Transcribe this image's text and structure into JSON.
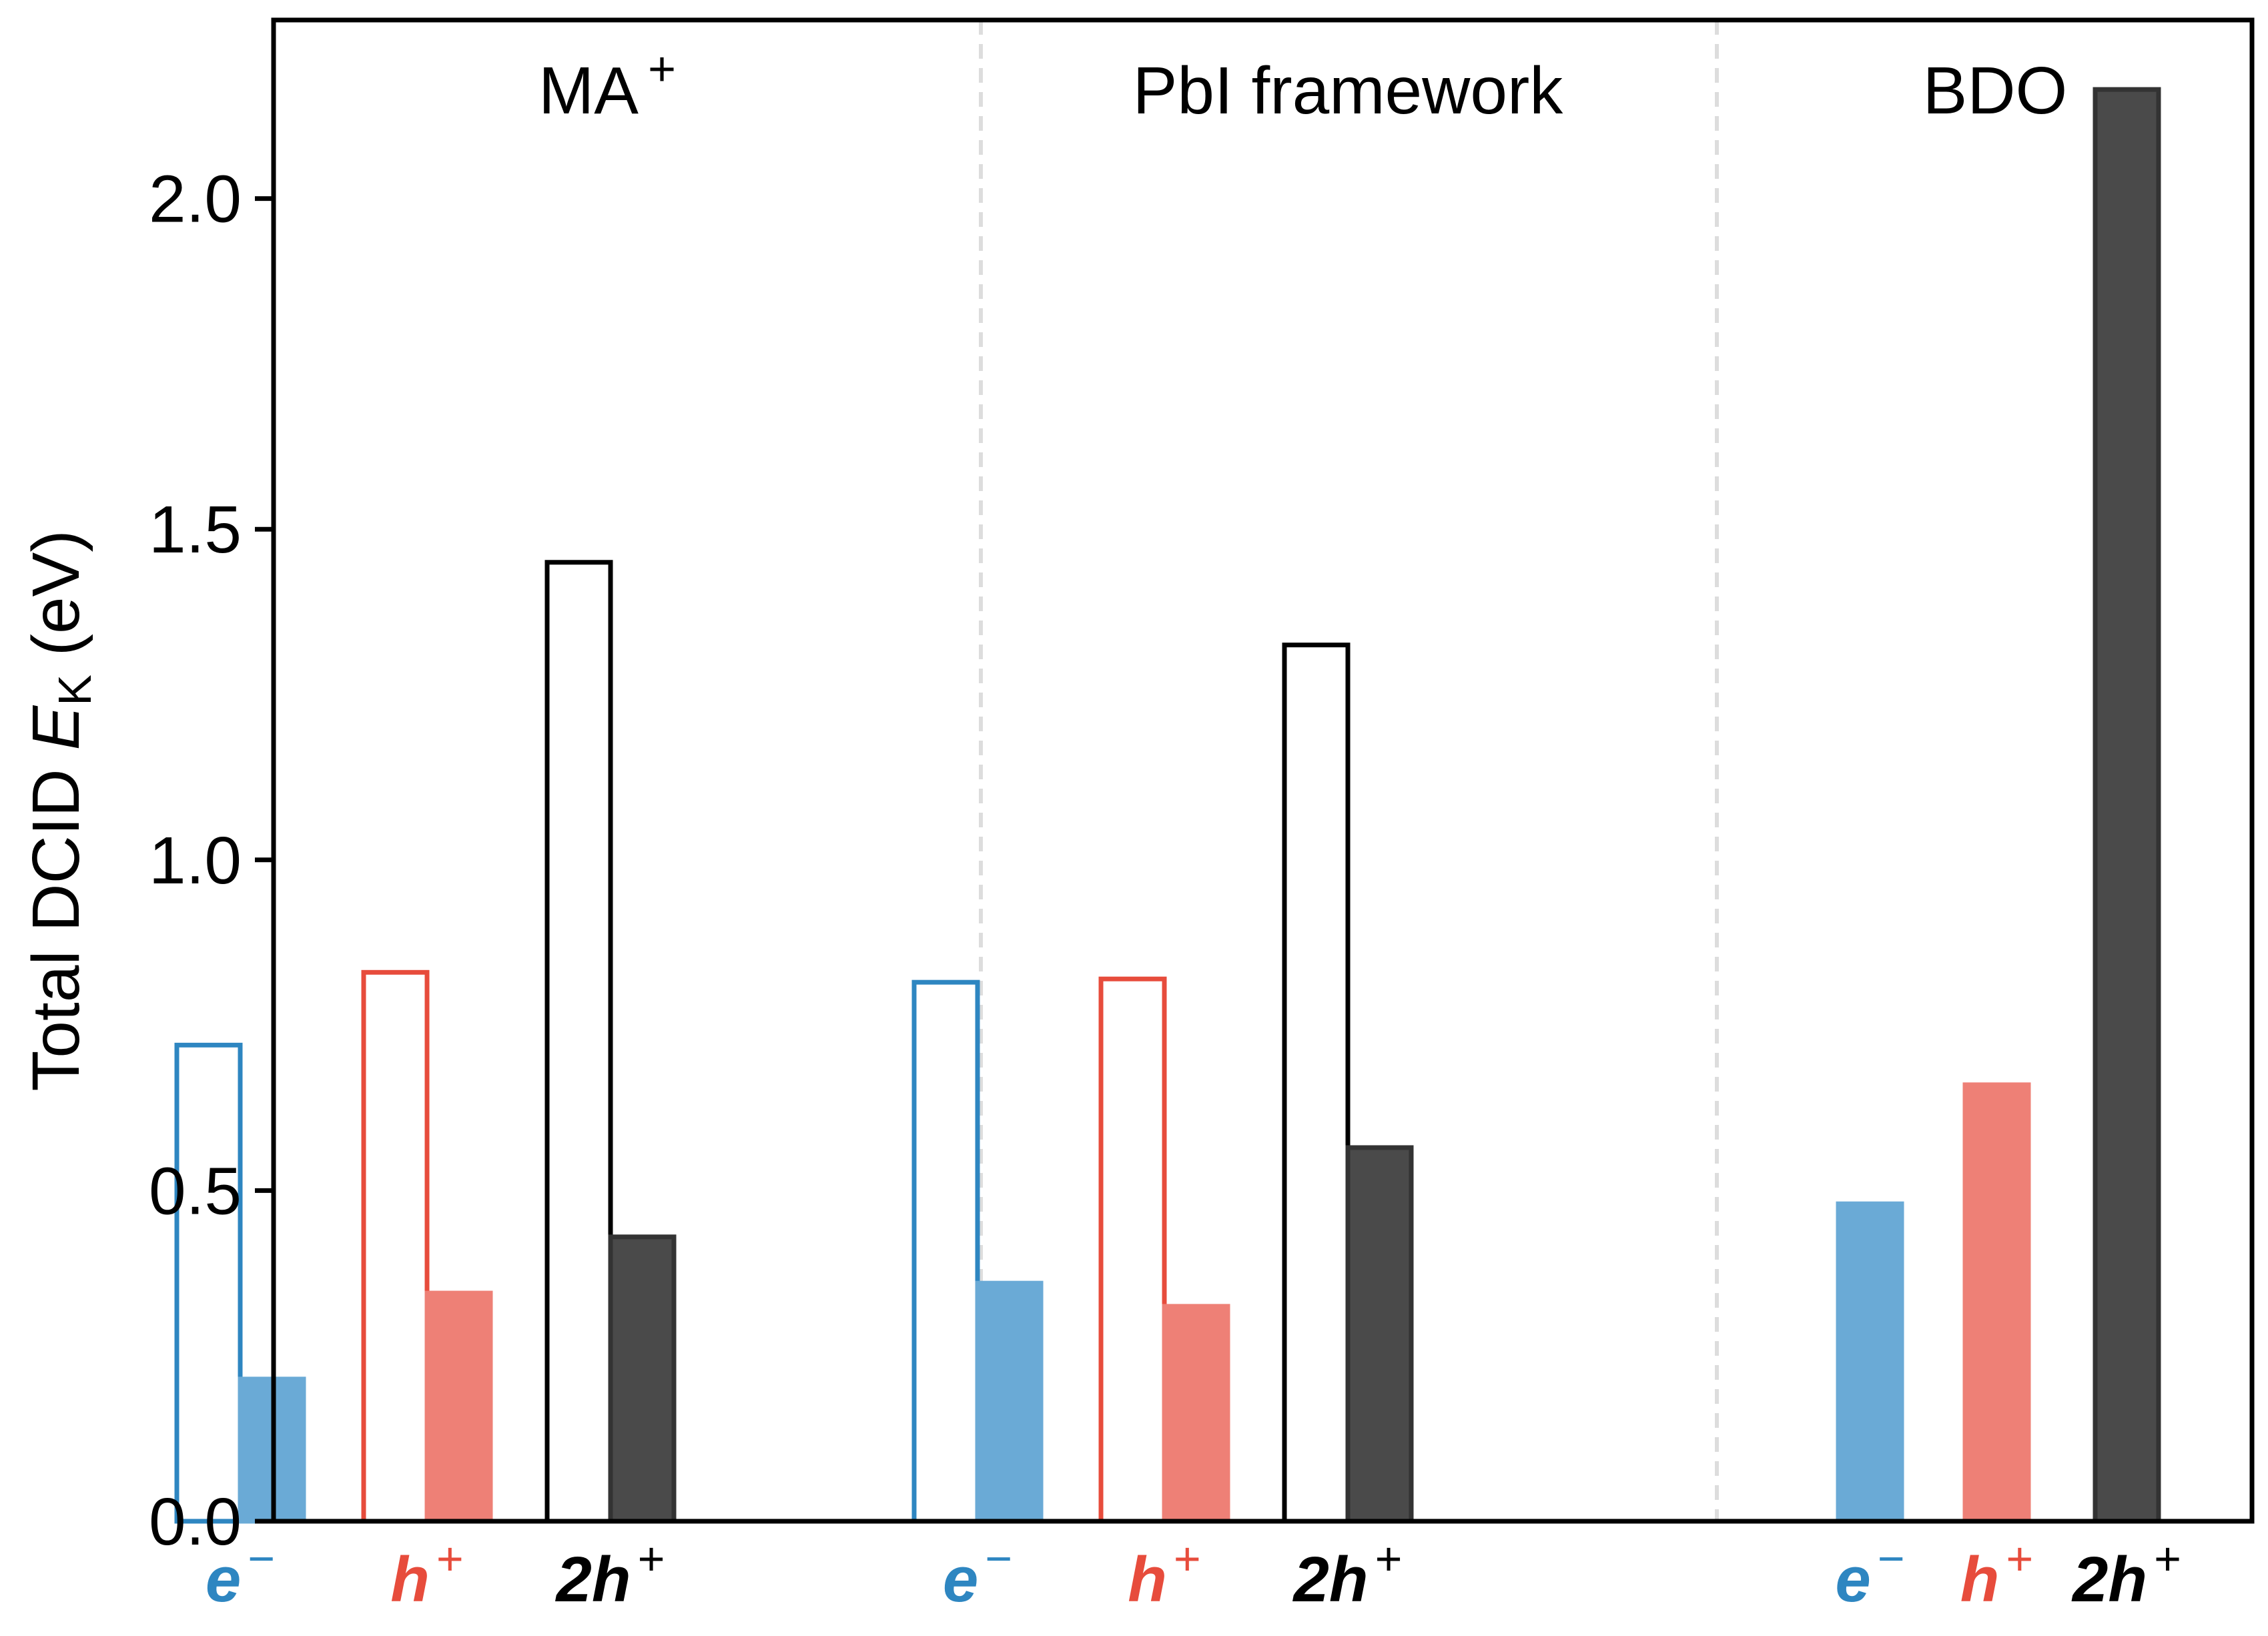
{
  "chart_data": {
    "type": "bar",
    "ylabel": {
      "prefix": "Total DCID ",
      "symbol": "E",
      "subscript": "K",
      "suffix": " (eV)"
    },
    "ylim": [
      0,
      2.27
    ],
    "yticks": [
      "0.0",
      "0.5",
      "1.0",
      "1.5",
      "2.0"
    ],
    "ytick_values": [
      0.0,
      0.5,
      1.0,
      1.5,
      2.0
    ],
    "grid": false,
    "colors": {
      "electron": "#2e86c1",
      "electron_fill": "#6aaad6",
      "hole": "#e74c3c",
      "hole_fill": "#ee8076",
      "twohole": "#000000",
      "twohole_fill": "#4a4a4a",
      "divider": "#dddddd"
    },
    "groups": [
      {
        "title": "MA",
        "title_sup": "+",
        "pairs": [
          {
            "carrier": "electron",
            "label": "e",
            "label_sup": "−",
            "open": 0.72,
            "filled": 0.215
          },
          {
            "carrier": "hole",
            "label": "h",
            "label_sup": "+",
            "open": 0.83,
            "filled": 0.345
          },
          {
            "carrier": "twohole",
            "label": "2h",
            "label_sup": "+",
            "open": 1.45,
            "filled": 0.43
          }
        ]
      },
      {
        "title": "PbI framework",
        "title_sup": "",
        "pairs": [
          {
            "carrier": "electron",
            "label": "e",
            "label_sup": "−",
            "open": 0.815,
            "filled": 0.36
          },
          {
            "carrier": "hole",
            "label": "h",
            "label_sup": "+",
            "open": 0.82,
            "filled": 0.325
          },
          {
            "carrier": "twohole",
            "label": "2h",
            "label_sup": "+",
            "open": 1.325,
            "filled": 0.565
          }
        ]
      },
      {
        "title": "BDO",
        "title_sup": "",
        "pairs": [
          {
            "carrier": "electron",
            "label": "e",
            "label_sup": "−",
            "open": null,
            "filled": 0.48
          },
          {
            "carrier": "hole",
            "label": "h",
            "label_sup": "+",
            "open": null,
            "filled": 0.66
          },
          {
            "carrier": "twohole",
            "label": "2h",
            "label_sup": "+",
            "open": null,
            "filled": 2.165
          }
        ]
      }
    ]
  }
}
